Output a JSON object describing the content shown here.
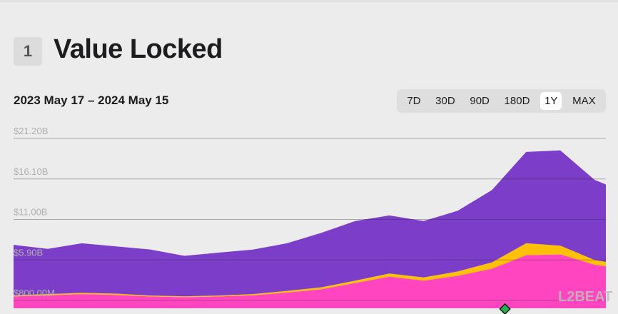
{
  "header": {
    "section_number": "1",
    "title": "Value Locked",
    "date_range": "2023 May 17 – 2024 May 15"
  },
  "timeframes": [
    "7D",
    "30D",
    "90D",
    "180D",
    "1Y",
    "MAX"
  ],
  "active_timeframe": "1Y",
  "watermark": "L2BEAT",
  "chart_data": {
    "type": "area",
    "stacked": true,
    "x": [
      "2023-05-17",
      "2023-06-07",
      "2023-06-28",
      "2023-07-19",
      "2023-08-09",
      "2023-08-30",
      "2023-09-20",
      "2023-10-11",
      "2023-11-01",
      "2023-11-22",
      "2023-12-13",
      "2024-01-03",
      "2024-01-24",
      "2024-02-14",
      "2024-03-06",
      "2024-03-27",
      "2024-04-17",
      "2024-05-08",
      "2024-05-15"
    ],
    "series": [
      {
        "color": "#ff46c0",
        "values": [
          1.3,
          1.45,
          1.6,
          1.5,
          1.3,
          1.2,
          1.3,
          1.45,
          1.8,
          2.2,
          3.0,
          3.8,
          3.3,
          3.9,
          4.8,
          6.5,
          6.6,
          5.3,
          5.1
        ]
      },
      {
        "color": "#ffc107",
        "values": [
          0.15,
          0.15,
          0.15,
          0.15,
          0.12,
          0.12,
          0.12,
          0.15,
          0.2,
          0.25,
          0.3,
          0.4,
          0.4,
          0.55,
          0.8,
          1.5,
          1.1,
          0.6,
          0.55
        ]
      },
      {
        "color": "#7c3ec8",
        "values": [
          6.35,
          5.7,
          6.25,
          5.95,
          5.8,
          5.1,
          5.4,
          5.6,
          6.0,
          6.85,
          7.5,
          7.3,
          7.1,
          7.65,
          9.1,
          11.5,
          12.0,
          10.1,
          9.75
        ]
      }
    ],
    "y_ticks": [
      "$21.20B",
      "$16.10B",
      "$11.00B",
      "$5.90B",
      "$800.00M"
    ],
    "ylim": [
      0.8,
      21.2
    ],
    "marker_date": "2024-03-14",
    "grid": true
  }
}
